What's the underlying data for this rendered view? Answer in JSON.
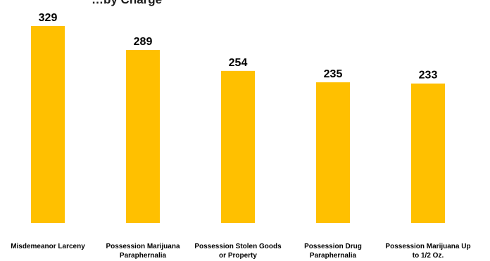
{
  "chart_data": {
    "type": "bar",
    "title": "…by Charge",
    "categories": [
      "Misdemeanor Larceny",
      "Possession Marijuana Paraphernalia",
      "Possession Stolen Goods or Property",
      "Possession Drug Paraphernalia",
      "Possession Marijuana Up to 1/2 Oz."
    ],
    "category_lines": [
      [
        "Misdemeanor Larceny"
      ],
      [
        "Possession Marijuana",
        "Paraphernalia"
      ],
      [
        "Possession Stolen Goods",
        "or Property"
      ],
      [
        "Possession Drug",
        "Paraphernalia"
      ],
      [
        "Possession Marijuana Up",
        "to 1/2 Oz."
      ]
    ],
    "values": [
      329,
      289,
      254,
      235,
      233
    ],
    "ylim": [
      0,
      329
    ],
    "grid": false,
    "legend": "none",
    "bar_color": "#FFC000",
    "xlabel": "",
    "ylabel": ""
  }
}
